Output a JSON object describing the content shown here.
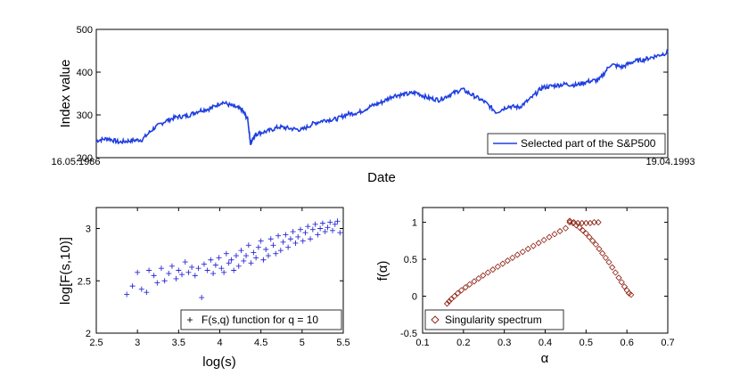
{
  "chart_data": [
    {
      "type": "line",
      "title": "",
      "xlabel": "Date",
      "ylabel": "Index value",
      "xtick_labels": [
        "16.05.1986",
        "19.04.1993"
      ],
      "ylim": [
        200,
        500
      ],
      "yticks": [
        200,
        300,
        400,
        500
      ],
      "legend": "Selected part of the S&P500",
      "legend_loc": "bottom-right",
      "color": "#1f3fe0",
      "series": [
        {
          "name": "Selected part of the S&P500",
          "x": [
            0,
            0.02,
            0.04,
            0.06,
            0.08,
            0.1,
            0.12,
            0.14,
            0.16,
            0.18,
            0.2,
            0.22,
            0.24,
            0.255,
            0.265,
            0.27,
            0.275,
            0.28,
            0.3,
            0.32,
            0.34,
            0.36,
            0.38,
            0.4,
            0.42,
            0.44,
            0.46,
            0.48,
            0.5,
            0.52,
            0.54,
            0.56,
            0.58,
            0.6,
            0.62,
            0.64,
            0.66,
            0.68,
            0.7,
            0.72,
            0.74,
            0.76,
            0.78,
            0.8,
            0.82,
            0.84,
            0.86,
            0.88,
            0.9,
            0.92,
            0.94,
            0.96,
            0.98,
            1.0
          ],
          "values": [
            240,
            245,
            236,
            240,
            242,
            268,
            285,
            295,
            298,
            310,
            315,
            330,
            320,
            312,
            290,
            232,
            248,
            256,
            262,
            272,
            268,
            265,
            280,
            288,
            290,
            302,
            306,
            320,
            330,
            345,
            348,
            352,
            340,
            335,
            348,
            360,
            345,
            330,
            306,
            320,
            318,
            338,
            364,
            368,
            372,
            370,
            378,
            382,
            418,
            412,
            425,
            430,
            438,
            446
          ]
        }
      ]
    },
    {
      "type": "scatter",
      "xlabel": "log(s)",
      "ylabel": "log[F(s,10)]",
      "xlim": [
        2.5,
        5.5
      ],
      "ylim": [
        2,
        3.2
      ],
      "xticks": [
        "2.5",
        "3",
        "3.5",
        "4",
        "4.5",
        "5",
        "5.5"
      ],
      "yticks": [
        "2",
        "2.5",
        "3"
      ],
      "legend": "F(s,q) function for q = 10",
      "legend_loc": "bottom-right",
      "marker": "+",
      "color": "#2a2ad8",
      "points": {
        "x": [
          2.87,
          2.94,
          3.0,
          3.05,
          3.11,
          3.14,
          3.2,
          3.24,
          3.29,
          3.33,
          3.38,
          3.42,
          3.47,
          3.5,
          3.54,
          3.58,
          3.62,
          3.66,
          3.7,
          3.74,
          3.78,
          3.81,
          3.85,
          3.89,
          3.92,
          3.95,
          3.99,
          4.02,
          4.05,
          4.08,
          4.11,
          4.14,
          4.17,
          4.2,
          4.23,
          4.26,
          4.29,
          4.32,
          4.35,
          4.38,
          4.41,
          4.44,
          4.47,
          4.5,
          4.53,
          4.56,
          4.59,
          4.62,
          4.65,
          4.68,
          4.71,
          4.74,
          4.77,
          4.8,
          4.83,
          4.86,
          4.89,
          4.92,
          4.95,
          4.98,
          5.01,
          5.04,
          5.07,
          5.1,
          5.13,
          5.16,
          5.19,
          5.22,
          5.25,
          5.28,
          5.31,
          5.34,
          5.37,
          5.4,
          5.43,
          5.46
        ],
        "y": [
          2.37,
          2.45,
          2.58,
          2.42,
          2.39,
          2.6,
          2.55,
          2.48,
          2.62,
          2.5,
          2.57,
          2.64,
          2.52,
          2.6,
          2.56,
          2.68,
          2.58,
          2.63,
          2.55,
          2.62,
          2.34,
          2.66,
          2.6,
          2.7,
          2.57,
          2.65,
          2.72,
          2.62,
          2.58,
          2.76,
          2.67,
          2.7,
          2.6,
          2.74,
          2.64,
          2.79,
          2.69,
          2.74,
          2.84,
          2.67,
          2.77,
          2.72,
          2.82,
          2.88,
          2.7,
          2.8,
          2.74,
          2.9,
          2.84,
          2.76,
          2.93,
          2.79,
          2.87,
          2.94,
          2.82,
          2.9,
          2.97,
          2.86,
          2.92,
          2.99,
          2.88,
          2.96,
          3.02,
          2.9,
          2.99,
          3.04,
          2.94,
          3.0,
          3.05,
          2.97,
          3.01,
          3.06,
          2.98,
          3.04,
          3.07,
          2.96
        ]
      }
    },
    {
      "type": "scatter",
      "xlabel": "α",
      "ylabel": "f(α)",
      "xlim": [
        0.1,
        0.7
      ],
      "ylim": [
        -0.5,
        1.2
      ],
      "xticks": [
        "0.1",
        "0.2",
        "0.3",
        "0.4",
        "0.5",
        "0.6",
        "0.7"
      ],
      "yticks": [
        "-0.5",
        "0",
        "0.5",
        "1"
      ],
      "legend": "Singularity spectrum",
      "legend_loc": "bottom-left",
      "marker": "diamond",
      "color": "#8b1a0a",
      "points": {
        "x": [
          0.16,
          0.165,
          0.17,
          0.178,
          0.186,
          0.195,
          0.205,
          0.215,
          0.226,
          0.237,
          0.248,
          0.26,
          0.272,
          0.284,
          0.296,
          0.308,
          0.32,
          0.332,
          0.345,
          0.358,
          0.371,
          0.384,
          0.397,
          0.41,
          0.423,
          0.436,
          0.45,
          0.46,
          0.47,
          0.48,
          0.49,
          0.5,
          0.51,
          0.52,
          0.53,
          0.46,
          0.468,
          0.476,
          0.484,
          0.492,
          0.5,
          0.508,
          0.516,
          0.524,
          0.532,
          0.54,
          0.548,
          0.556,
          0.564,
          0.572,
          0.58,
          0.587,
          0.594,
          0.6,
          0.605,
          0.61
        ],
        "y": [
          -0.1,
          -0.07,
          -0.04,
          0.0,
          0.04,
          0.08,
          0.12,
          0.16,
          0.2,
          0.24,
          0.28,
          0.32,
          0.36,
          0.4,
          0.44,
          0.48,
          0.52,
          0.56,
          0.6,
          0.64,
          0.68,
          0.72,
          0.76,
          0.8,
          0.84,
          0.88,
          0.92,
          1.0,
          1.0,
          0.99,
          0.99,
          0.99,
          0.99,
          1.0,
          1.0,
          1.02,
          0.99,
          0.96,
          0.93,
          0.89,
          0.85,
          0.8,
          0.75,
          0.7,
          0.64,
          0.58,
          0.52,
          0.46,
          0.39,
          0.32,
          0.25,
          0.19,
          0.13,
          0.08,
          0.04,
          0.02
        ]
      }
    }
  ]
}
